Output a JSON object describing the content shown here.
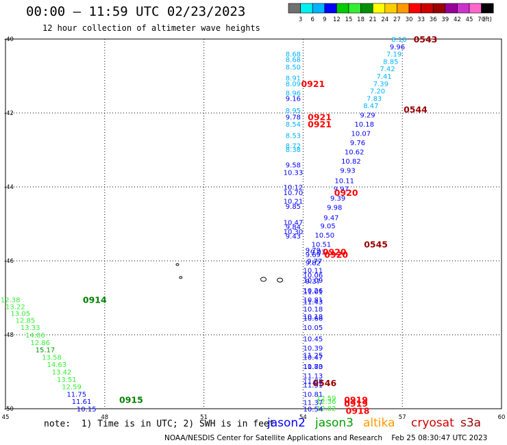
{
  "header": {
    "title": "00:00 – 11:59 UTC 02/23/2023",
    "subtitle": "12 hour collection of altimeter wave heights"
  },
  "scale": {
    "colors": [
      "#707070",
      "#00f0f0",
      "#00b4ff",
      "#0000ff",
      "#00cc00",
      "#33ee33",
      "#009000",
      "#ffff00",
      "#ffcc00",
      "#ff9900",
      "#ff0000",
      "#cc0000",
      "#990000",
      "#990099",
      "#cc33cc",
      "#ff66cc",
      "#000000"
    ],
    "labels": [
      "3",
      "6",
      "9",
      "12",
      "15",
      "18",
      "21",
      "24",
      "27",
      "30",
      "33",
      "36",
      "39",
      "42",
      "45",
      "70",
      "(ft)"
    ]
  },
  "footer": {
    "note": "note:  1) Time is in UTC; 2) SWH is in feet",
    "credits": "NOAA/NESDIS Center for Satellite Applications and Research    Feb 25 08:30:47 UTC 2023"
  },
  "satellites": [
    {
      "name": "jason2",
      "color": "#0000ff"
    },
    {
      "name": "jason3",
      "color": "#00a000"
    },
    {
      "name": "altika",
      "color": "#ff9900"
    },
    {
      "name": "cryosat",
      "color": "#cc0000"
    },
    {
      "name": "s3a",
      "color": "#990000"
    }
  ],
  "chart_data": {
    "type": "scatter",
    "xlim": [
      45,
      60
    ],
    "ylim": [
      -50,
      -40
    ],
    "x_ticks": [
      "45",
      "48",
      "51",
      "54",
      "57",
      "60"
    ],
    "y_ticks": [
      "-40",
      "-42",
      "-44",
      "-46",
      "-48",
      "-50"
    ],
    "grid": true,
    "series": [
      {
        "name": "jason3",
        "points": [
          {
            "x": 45.15,
            "y": -47.05,
            "v": "12.38",
            "c": "#33ee33"
          },
          {
            "x": 45.3,
            "y": -47.23,
            "v": "13.22",
            "c": "#33ee33"
          },
          {
            "x": 45.45,
            "y": -47.42,
            "v": "13.05",
            "c": "#33ee33"
          },
          {
            "x": 45.6,
            "y": -47.6,
            "v": "12.85",
            "c": "#33ee33"
          },
          {
            "x": 45.75,
            "y": -47.8,
            "v": "13.33",
            "c": "#33ee33"
          },
          {
            "x": 45.9,
            "y": -48.0,
            "v": "14.06",
            "c": "#33ee33"
          },
          {
            "x": 46.05,
            "y": -48.2,
            "v": "12.86",
            "c": "#33ee33"
          },
          {
            "x": 46.2,
            "y": -48.4,
            "v": "15.17",
            "c": "#009000"
          },
          {
            "x": 46.4,
            "y": -48.6,
            "v": "13.58",
            "c": "#33ee33"
          },
          {
            "x": 46.55,
            "y": -48.8,
            "v": "14.63",
            "c": "#33ee33"
          },
          {
            "x": 46.7,
            "y": -49.0,
            "v": "13.42",
            "c": "#33ee33"
          },
          {
            "x": 46.85,
            "y": -49.2,
            "v": "13.51",
            "c": "#33ee33"
          },
          {
            "x": 47.0,
            "y": -49.4,
            "v": "12.59",
            "c": "#33ee33"
          },
          {
            "x": 47.15,
            "y": -49.6,
            "v": "11.75",
            "c": "#0000ff"
          },
          {
            "x": 47.3,
            "y": -49.8,
            "v": "11.61",
            "c": "#0000ff"
          },
          {
            "x": 47.45,
            "y": -50.0,
            "v": "10.15",
            "c": "#0000ff"
          },
          {
            "x": 54.7,
            "y": -49.7,
            "v": "12.59",
            "c": "#33ee33"
          },
          {
            "x": 54.7,
            "y": -49.8,
            "v": "12.36",
            "c": "#33ee33"
          },
          {
            "x": 54.7,
            "y": -49.98,
            "v": "12.82",
            "c": "#33ee33"
          }
        ]
      },
      {
        "name": "jason2",
        "points": [
          {
            "x": 53.7,
            "y": -40.4,
            "v": "8.68",
            "c": "#00b4ff"
          },
          {
            "x": 53.7,
            "y": -40.55,
            "v": "8.68",
            "c": "#00b4ff"
          },
          {
            "x": 53.7,
            "y": -40.75,
            "v": "8.50",
            "c": "#00b4ff"
          },
          {
            "x": 53.7,
            "y": -41.05,
            "v": "8.91",
            "c": "#00b4ff"
          },
          {
            "x": 53.7,
            "y": -41.2,
            "v": "8.09",
            "c": "#00b4ff"
          },
          {
            "x": 53.7,
            "y": -41.45,
            "v": "8.96",
            "c": "#00b4ff"
          },
          {
            "x": 53.7,
            "y": -41.6,
            "v": "9.16",
            "c": "#0000ff"
          },
          {
            "x": 53.7,
            "y": -41.93,
            "v": "8.95",
            "c": "#00b4ff"
          },
          {
            "x": 53.7,
            "y": -42.1,
            "v": "9.78",
            "c": "#0000ff"
          },
          {
            "x": 53.7,
            "y": -42.3,
            "v": "8.54",
            "c": "#00b4ff"
          },
          {
            "x": 53.7,
            "y": -42.6,
            "v": "8.53",
            "c": "#00b4ff"
          },
          {
            "x": 53.7,
            "y": -42.88,
            "v": "8.72",
            "c": "#00b4ff"
          },
          {
            "x": 53.7,
            "y": -42.98,
            "v": "8.38",
            "c": "#00b4ff"
          },
          {
            "x": 53.7,
            "y": -43.4,
            "v": "9.58",
            "c": "#0000ff"
          },
          {
            "x": 53.7,
            "y": -43.6,
            "v": "10.33",
            "c": "#0000ff"
          },
          {
            "x": 53.7,
            "y": -44.0,
            "v": "10.12",
            "c": "#0000ff"
          },
          {
            "x": 53.7,
            "y": -44.15,
            "v": "10.70",
            "c": "#0000ff"
          },
          {
            "x": 53.7,
            "y": -44.38,
            "v": "10.21",
            "c": "#0000ff"
          },
          {
            "x": 53.7,
            "y": -44.52,
            "v": "9.85",
            "c": "#0000ff"
          },
          {
            "x": 53.7,
            "y": -44.95,
            "v": "10.47",
            "c": "#0000ff"
          },
          {
            "x": 53.7,
            "y": -45.07,
            "v": "9.84",
            "c": "#0000ff"
          },
          {
            "x": 53.7,
            "y": -45.2,
            "v": "10.30",
            "c": "#0000ff"
          },
          {
            "x": 53.7,
            "y": -45.32,
            "v": "9.43",
            "c": "#0000ff"
          },
          {
            "x": 54.3,
            "y": -45.7,
            "v": "9.79",
            "c": "#0000ff"
          },
          {
            "x": 54.3,
            "y": -45.82,
            "v": "9.69",
            "c": "#0000ff"
          },
          {
            "x": 54.3,
            "y": -46.05,
            "v": "9.82",
            "c": "#0000ff"
          },
          {
            "x": 54.3,
            "y": -46.38,
            "v": "10.06",
            "c": "#0000ff"
          },
          {
            "x": 54.3,
            "y": -46.52,
            "v": "10.09",
            "c": "#0000ff"
          },
          {
            "x": 54.3,
            "y": -46.82,
            "v": "11.01",
            "c": "#0000ff"
          },
          {
            "x": 54.3,
            "y": -47.1,
            "v": "11.43",
            "c": "#0000ff"
          },
          {
            "x": 54.3,
            "y": -47.5,
            "v": "10.18",
            "c": "#0000ff"
          },
          {
            "x": 54.3,
            "y": -47.8,
            "v": "10.05",
            "c": "#0000ff"
          },
          {
            "x": 54.3,
            "y": -48.1,
            "v": "10.45",
            "c": "#0000ff"
          },
          {
            "x": 54.3,
            "y": -48.35,
            "v": "10.39",
            "c": "#0000ff"
          },
          {
            "x": 54.3,
            "y": -48.6,
            "v": "10.47",
            "c": "#0000ff"
          },
          {
            "x": 54.3,
            "y": -48.85,
            "v": "10.73",
            "c": "#0000ff"
          },
          {
            "x": 54.3,
            "y": -49.1,
            "v": "11.13",
            "c": "#0000ff"
          },
          {
            "x": 54.3,
            "y": -49.35,
            "v": "11.51",
            "c": "#0000ff"
          },
          {
            "x": 54.3,
            "y": -49.6,
            "v": "10.81",
            "c": "#0000ff"
          },
          {
            "x": 54.3,
            "y": -49.82,
            "v": "11.37",
            "c": "#0000ff"
          },
          {
            "x": 54.3,
            "y": -50.0,
            "v": "10.54",
            "c": "#0000ff"
          },
          {
            "x": 56.9,
            "y": -40.0,
            "v": "8.10",
            "c": "#00b4ff"
          },
          {
            "x": 56.85,
            "y": -40.2,
            "v": "9.96",
            "c": "#0000ff"
          },
          {
            "x": 56.75,
            "y": -40.4,
            "v": "7.19",
            "c": "#00b4ff"
          },
          {
            "x": 56.65,
            "y": -40.6,
            "v": "8.85",
            "c": "#00b4ff"
          },
          {
            "x": 56.55,
            "y": -40.8,
            "v": "7.42",
            "c": "#00b4ff"
          },
          {
            "x": 56.45,
            "y": -41.0,
            "v": "7.41",
            "c": "#00b4ff"
          },
          {
            "x": 56.35,
            "y": -41.2,
            "v": "7.39",
            "c": "#00b4ff"
          },
          {
            "x": 56.25,
            "y": -41.4,
            "v": "7.20",
            "c": "#00b4ff"
          },
          {
            "x": 56.15,
            "y": -41.6,
            "v": "7.83",
            "c": "#00b4ff"
          },
          {
            "x": 56.05,
            "y": -41.8,
            "v": "8.47",
            "c": "#00b4ff"
          },
          {
            "x": 55.95,
            "y": -42.05,
            "v": "9.29",
            "c": "#0000ff"
          },
          {
            "x": 55.85,
            "y": -42.3,
            "v": "10.18",
            "c": "#0000ff"
          },
          {
            "x": 55.75,
            "y": -42.55,
            "v": "10.07",
            "c": "#0000ff"
          },
          {
            "x": 55.65,
            "y": -42.8,
            "v": "9.76",
            "c": "#0000ff"
          },
          {
            "x": 55.55,
            "y": -43.05,
            "v": "10.62",
            "c": "#0000ff"
          },
          {
            "x": 55.45,
            "y": -43.3,
            "v": "10.82",
            "c": "#0000ff"
          },
          {
            "x": 55.35,
            "y": -43.55,
            "v": "9.93",
            "c": "#0000ff"
          },
          {
            "x": 55.25,
            "y": -43.82,
            "v": "10.11",
            "c": "#0000ff"
          },
          {
            "x": 55.15,
            "y": -44.05,
            "v": "9.97",
            "c": "#0000ff"
          },
          {
            "x": 55.05,
            "y": -44.3,
            "v": "9.39",
            "c": "#0000ff"
          },
          {
            "x": 54.95,
            "y": -44.55,
            "v": "9.98",
            "c": "#0000ff"
          },
          {
            "x": 54.85,
            "y": -44.82,
            "v": "9.47",
            "c": "#0000ff"
          },
          {
            "x": 54.75,
            "y": -45.05,
            "v": "9.05",
            "c": "#0000ff"
          },
          {
            "x": 54.65,
            "y": -45.3,
            "v": "10.50",
            "c": "#0000ff"
          },
          {
            "x": 54.55,
            "y": -45.55,
            "v": "10.51",
            "c": "#0000ff"
          },
          {
            "x": 54.45,
            "y": -45.75,
            "v": "9.03",
            "c": "#0000ff"
          },
          {
            "x": 54.35,
            "y": -46.0,
            "v": "9.77",
            "c": "#0000ff"
          },
          {
            "x": 54.3,
            "y": -46.25,
            "v": "10.11",
            "c": "#0000ff"
          },
          {
            "x": 54.3,
            "y": -46.55,
            "v": "9.37",
            "c": "#0000ff"
          },
          {
            "x": 54.3,
            "y": -46.8,
            "v": "10.26",
            "c": "#0000ff"
          },
          {
            "x": 54.3,
            "y": -47.05,
            "v": "10.81",
            "c": "#0000ff"
          },
          {
            "x": 54.3,
            "y": -47.3,
            "v": "10.18",
            "c": "#0000ff"
          },
          {
            "x": 54.3,
            "y": -47.55,
            "v": "10.66",
            "c": "#0000ff"
          },
          {
            "x": 54.3,
            "y": -48.55,
            "v": "11.25",
            "c": "#0000ff"
          },
          {
            "x": 54.3,
            "y": -48.85,
            "v": "11.80",
            "c": "#0000ff"
          },
          {
            "x": 54.3,
            "y": -49.25,
            "v": "11.88",
            "c": "#0000ff"
          }
        ]
      }
    ],
    "pass_times": [
      {
        "x": 47.7,
        "y": -47.05,
        "t": "0914",
        "c": "#008000"
      },
      {
        "x": 48.8,
        "y": -49.75,
        "t": "0915",
        "c": "#008000"
      },
      {
        "x": 54.3,
        "y": -41.2,
        "t": "0921",
        "c": "#ff0000"
      },
      {
        "x": 54.5,
        "y": -42.1,
        "t": "0921",
        "c": "#ff0000"
      },
      {
        "x": 54.5,
        "y": -42.3,
        "t": "0921",
        "c": "#ff0000"
      },
      {
        "x": 55.3,
        "y": -44.15,
        "t": "0920",
        "c": "#ff0000"
      },
      {
        "x": 54.95,
        "y": -45.75,
        "t": "0920",
        "c": "#ff0000"
      },
      {
        "x": 55.0,
        "y": -45.82,
        "t": "0920",
        "c": "#ff0000"
      },
      {
        "x": 57.7,
        "y": -40.0,
        "t": "0543",
        "c": "#990000"
      },
      {
        "x": 57.4,
        "y": -41.9,
        "t": "0544",
        "c": "#990000"
      },
      {
        "x": 56.2,
        "y": -45.55,
        "t": "0545",
        "c": "#990000"
      },
      {
        "x": 54.65,
        "y": -49.3,
        "t": "0546",
        "c": "#990000"
      },
      {
        "x": 55.6,
        "y": -49.75,
        "t": "0919",
        "c": "#ff0000"
      },
      {
        "x": 55.6,
        "y": -49.85,
        "t": "0919",
        "c": "#ff0000"
      },
      {
        "x": 55.65,
        "y": -50.05,
        "t": "0918",
        "c": "#ff0000"
      }
    ],
    "islands": [
      {
        "x": 50.2,
        "y": -46.1
      },
      {
        "x": 50.3,
        "y": -46.45
      },
      {
        "x": 52.8,
        "y": -46.5
      },
      {
        "x": 53.3,
        "y": -46.52
      }
    ]
  }
}
